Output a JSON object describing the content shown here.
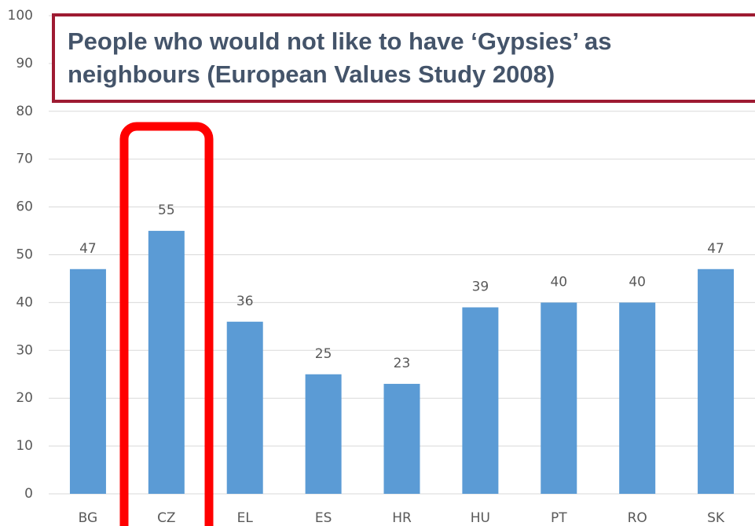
{
  "chart_data": {
    "type": "bar",
    "title": "People who would not like to have ‘Gypsies’ as neighbours (European Values Study 2008)",
    "categories": [
      "BG",
      "CZ",
      "EL",
      "ES",
      "HR",
      "HU",
      "PT",
      "RO",
      "SK"
    ],
    "values": [
      47,
      55,
      36,
      25,
      23,
      39,
      40,
      40,
      47
    ],
    "color": "#5b9bd5",
    "ylim": [
      0,
      100
    ],
    "yticks": [
      0,
      10,
      20,
      30,
      40,
      50,
      60,
      70,
      80,
      90,
      100
    ],
    "grid": true
  }
}
